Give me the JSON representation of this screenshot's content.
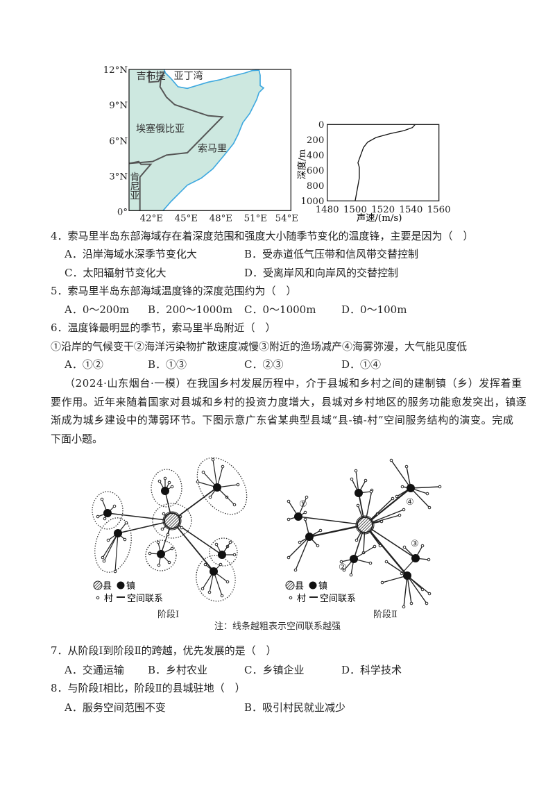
{
  "map": {
    "lat_ticks": [
      "12°N",
      "9°N",
      "6°N",
      "3°N",
      "0°"
    ],
    "lon_ticks": [
      "42°E",
      "45°E",
      "48°E",
      "51°E",
      "54°E"
    ],
    "labels": {
      "djibouti": "吉布提",
      "gulf": "亚丁湾",
      "ethiopia": "埃塞俄比亚",
      "somalia": "索马里",
      "kenya_1": "肯",
      "kenya_2": "尼",
      "kenya_3": "亚"
    },
    "colors": {
      "land": "#cde8e0",
      "coast": "#3fa9e0",
      "border": "#555555"
    }
  },
  "chart_data": {
    "type": "line",
    "xlabel": "声速/(m/s)",
    "ylabel": "深度/m",
    "xlim": [
      1480,
      1560
    ],
    "ylim": [
      1000,
      0
    ],
    "x_ticks": [
      "1480",
      "1500",
      "1520",
      "1540",
      "1560"
    ],
    "y_ticks": [
      "0",
      "200",
      "400",
      "600",
      "800",
      "1000"
    ],
    "series": [
      {
        "x": [
          1543,
          1541,
          1535,
          1525,
          1515,
          1509,
          1506,
          1504,
          1502,
          1503,
          1503,
          1502,
          1501,
          1500
        ],
        "y": [
          0,
          40,
          80,
          120,
          170,
          230,
          300,
          400,
          500,
          560,
          700,
          800,
          900,
          1000
        ]
      }
    ]
  },
  "questions": {
    "q4": {
      "stem": "4．索马里半岛东部海域存在着深度范围和强度大小随季节变化的温度锋，主要是因为（　）",
      "A": "A．沿岸海域水深季节变化大",
      "B": "B．受赤道低气压带和信风带交替控制",
      "C": "C．太阳辐射节变化大",
      "D": "D．受离岸风和向岸风的交替控制"
    },
    "q5": {
      "stem": "5．索马里半岛东部海域温度锋的深度范围约为（　）",
      "A": "A．0～200m",
      "B": "B．200～1000m",
      "C": "C．0～1000m",
      "D": "D．0～100m"
    },
    "q6": {
      "stem": "6．温度锋最明显的季节，索马里半岛附近（　）",
      "items": "①沿岸的气候变干②海洋污染物扩散速度减慢③附近的渔场减产④海雾弥漫，大气能见度低",
      "A": "A．①②",
      "B": "B．①③",
      "C": "C．②③",
      "D": "D．①④"
    },
    "passage": [
      "（2024·山东烟台·一模）在我国乡村发展历程中，介于县城和乡村之间的建制镇（乡）发挥着重",
      "要作用。近年来随着国家对县城和乡村的投资力度增大，县城对乡村地区的服务功能愈发突出，镇逐",
      "渐成为城乡建设中的薄弱环节。下图示意广东省某典型县域“县-镇-村”空间服务结构的演变。完成",
      "下面小题。"
    ],
    "q7": {
      "stem": "7．从阶段Ⅰ到阶段Ⅱ的跨越，优先发展的是（　）",
      "A": "A．交通运输",
      "B": "B．乡村农业",
      "C": "C．乡镇企业",
      "D": "D．科学技术"
    },
    "q8": {
      "stem": "8．与阶段Ⅰ相比，阶段Ⅱ的县城驻地（　）",
      "A": "A．服务空间范围不变",
      "B": "B．吸引村民就业减少"
    }
  },
  "diagram": {
    "legend": {
      "county": "县",
      "town": "镇",
      "village": "村",
      "link": "空间联系"
    },
    "stage1": "阶段Ⅰ",
    "stage2": "阶段Ⅱ",
    "markers": [
      "①",
      "②",
      "③",
      "④"
    ],
    "note": "注：线条越粗表示空间联系越强"
  }
}
